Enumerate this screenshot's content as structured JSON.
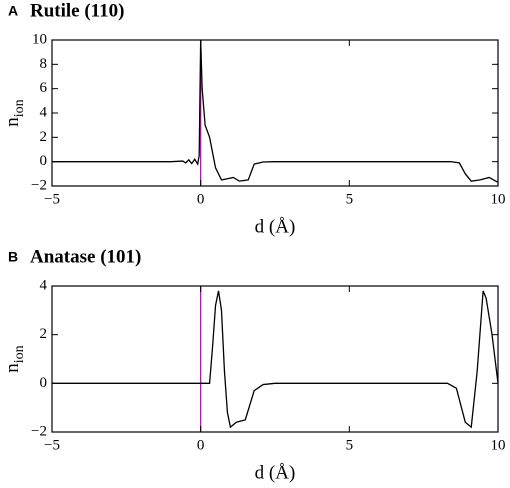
{
  "chart_data": [
    {
      "type": "line",
      "panel": "A",
      "title": "Rutile (110)",
      "xlabel": "d (Å)",
      "ylabel": "n",
      "ylabel_subscript": "ion",
      "xlim": [
        -5,
        10
      ],
      "ylim": [
        -2,
        10
      ],
      "xticks": [
        {
          "value": -5,
          "label": "−5"
        },
        0,
        5,
        10
      ],
      "yticks": [
        {
          "value": -2,
          "label": "−2"
        },
        0,
        2,
        4,
        6,
        8,
        10
      ],
      "vline": {
        "value": 0,
        "color": "#d000d0"
      },
      "color": "#000000",
      "x": [
        -5,
        -3,
        -1,
        -0.6,
        -0.5,
        -0.4,
        -0.3,
        -0.2,
        -0.1,
        -0.05,
        0,
        0.05,
        0.15,
        0.3,
        0.5,
        0.7,
        0.9,
        1.1,
        1.3,
        1.6,
        1.8,
        2.1,
        2.5,
        5,
        8.4,
        8.7,
        8.9,
        9.1,
        9.4,
        9.7,
        10
      ],
      "values": [
        0,
        0,
        0,
        0.05,
        -0.1,
        0.15,
        -0.15,
        0.2,
        -0.2,
        0.5,
        10,
        6,
        3,
        2,
        -0.5,
        -1.5,
        -1.4,
        -1.3,
        -1.6,
        -1.5,
        -0.2,
        -0.03,
        0,
        0,
        0,
        -0.1,
        -1,
        -1.6,
        -1.5,
        -1.3,
        -1.7
      ]
    },
    {
      "type": "line",
      "panel": "B",
      "title": "Anatase (101)",
      "xlabel": "d (Å)",
      "ylabel": "n",
      "ylabel_subscript": "ion",
      "xlim": [
        -5,
        10
      ],
      "ylim": [
        -2,
        4
      ],
      "xticks": [
        {
          "value": -5,
          "label": "−5"
        },
        0,
        5,
        10
      ],
      "yticks": [
        {
          "value": -2,
          "label": "−2"
        },
        0,
        2,
        4
      ],
      "vline": {
        "value": 0,
        "color": "#d000d0"
      },
      "color": "#000000",
      "x": [
        -5,
        -1,
        0.3,
        0.4,
        0.5,
        0.6,
        0.7,
        0.8,
        0.9,
        1.0,
        1.2,
        1.5,
        1.8,
        2.1,
        2.5,
        8.3,
        8.6,
        8.9,
        9.1,
        9.3,
        9.5,
        9.6,
        9.8,
        10
      ],
      "values": [
        0,
        0,
        0,
        1.5,
        3.2,
        3.8,
        3,
        0.5,
        -1.2,
        -1.8,
        -1.6,
        -1.5,
        -0.3,
        -0.05,
        0,
        0,
        -0.2,
        -1.6,
        -1.8,
        0.5,
        3.8,
        3.5,
        2,
        0
      ]
    }
  ]
}
